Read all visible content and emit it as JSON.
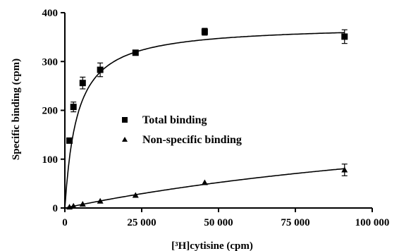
{
  "chart_data": {
    "type": "scatter",
    "title": "",
    "xlabel": "[³H]cytisine (cpm)",
    "ylabel": "Specific binding (cpm)",
    "xlim": [
      0,
      100000
    ],
    "ylim": [
      0,
      400
    ],
    "x_ticks": [
      0,
      25000,
      50000,
      75000,
      100000
    ],
    "x_tick_labels": [
      "0",
      "25 000",
      "50 000",
      "75 000",
      "100 000"
    ],
    "y_ticks": [
      0,
      100,
      200,
      300,
      400
    ],
    "y_tick_labels": [
      "0",
      "100",
      "200",
      "300",
      "400"
    ],
    "grid": false,
    "legend_position": "center",
    "series": [
      {
        "name": "Total binding",
        "marker": "square",
        "points": [
          {
            "x": 1500,
            "y": 138,
            "err": 4
          },
          {
            "x": 2800,
            "y": 207,
            "err": 10
          },
          {
            "x": 5800,
            "y": 256,
            "err": 12
          },
          {
            "x": 11500,
            "y": 283,
            "err": 14
          },
          {
            "x": 23000,
            "y": 318,
            "err": 5
          },
          {
            "x": 45500,
            "y": 361,
            "err": 7
          },
          {
            "x": 91000,
            "y": 351,
            "err": 14
          }
        ],
        "fit_curve": {
          "model": "hyperbolic",
          "bmax": 375,
          "kd": 4000
        }
      },
      {
        "name": "Non-specific binding",
        "marker": "triangle",
        "points": [
          {
            "x": 1500,
            "y": 2,
            "err": 0
          },
          {
            "x": 2800,
            "y": 4,
            "err": 0
          },
          {
            "x": 5800,
            "y": 8,
            "err": 0
          },
          {
            "x": 11500,
            "y": 14,
            "err": 0
          },
          {
            "x": 23000,
            "y": 26,
            "err": 0
          },
          {
            "x": 45500,
            "y": 52,
            "err": 0
          },
          {
            "x": 91000,
            "y": 78,
            "err": 12
          }
        ],
        "fit_curve": {
          "model": "hyperbolic",
          "bmax": 240,
          "kd": 180000
        }
      }
    ]
  }
}
